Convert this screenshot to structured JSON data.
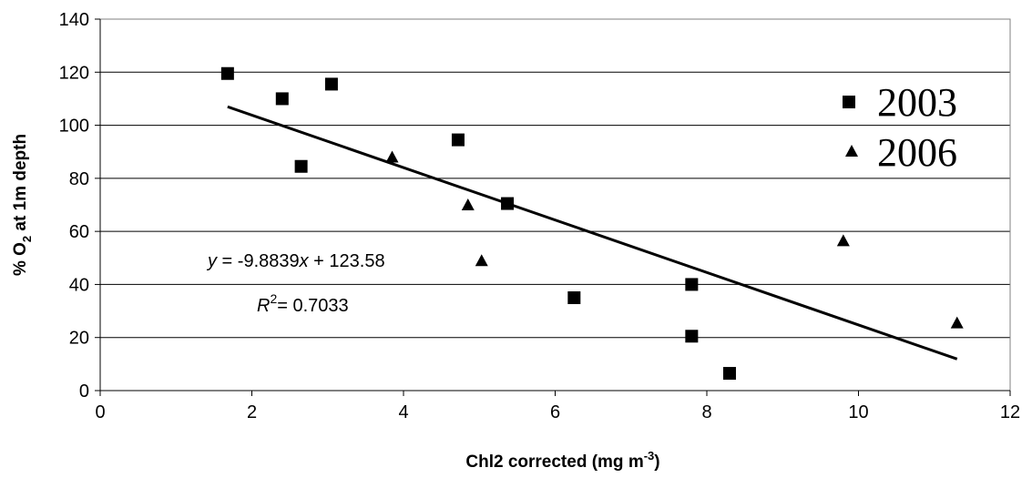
{
  "chart_data": {
    "type": "scatter",
    "xlabel_main": "Chl2 corrected (mg m",
    "xlabel_sup": "-3",
    "xlabel_end": ")",
    "ylabel_pre": "% O",
    "ylabel_sub": "2",
    "ylabel_post": " at 1m depth",
    "xlim": [
      0,
      12
    ],
    "ylim": [
      0,
      140
    ],
    "x_ticks": [
      "0",
      "2",
      "4",
      "6",
      "8",
      "10",
      "12"
    ],
    "y_ticks": [
      "0",
      "20",
      "40",
      "60",
      "80",
      "100",
      "120",
      "140"
    ],
    "grid": "horizontal",
    "legend_position": "right",
    "series": [
      {
        "name": "2003",
        "marker": "square",
        "points": [
          {
            "x": 1.68,
            "y": 119.5
          },
          {
            "x": 2.4,
            "y": 110
          },
          {
            "x": 2.65,
            "y": 84.5
          },
          {
            "x": 3.05,
            "y": 115.5
          },
          {
            "x": 4.72,
            "y": 94.5
          },
          {
            "x": 5.37,
            "y": 70.5
          },
          {
            "x": 6.25,
            "y": 35
          },
          {
            "x": 7.8,
            "y": 40
          },
          {
            "x": 7.8,
            "y": 20.5
          },
          {
            "x": 8.3,
            "y": 6.5
          }
        ]
      },
      {
        "name": "2006",
        "marker": "triangle",
        "points": [
          {
            "x": 3.85,
            "y": 88
          },
          {
            "x": 4.85,
            "y": 70
          },
          {
            "x": 5.03,
            "y": 49
          },
          {
            "x": 9.8,
            "y": 56.5
          },
          {
            "x": 11.3,
            "y": 25.5
          }
        ]
      }
    ],
    "trendline": {
      "slope": -9.8839,
      "intercept": 123.58,
      "x_range": [
        1.68,
        11.3
      ],
      "equation_y": "y",
      "equation_rest": " = -9.8839",
      "equation_x": "x",
      "equation_end": " + 123.58",
      "r2_label": "R",
      "r2_sup": "2",
      "r2_value": "= 0.7033"
    }
  }
}
